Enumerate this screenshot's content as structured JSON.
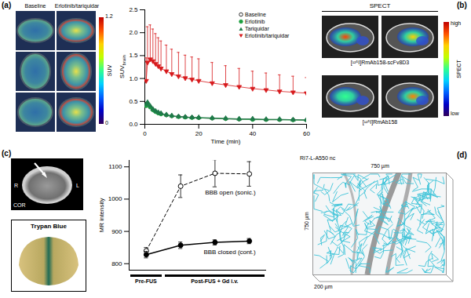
{
  "panels": {
    "a": {
      "label": "(a)",
      "columns": [
        "Baseline",
        "Erlotinib/tariquidar"
      ],
      "colorbar": {
        "label": "SUV",
        "range": [
          0,
          1.2
        ],
        "ticks": [
          0,
          1.2
        ]
      }
    },
    "b": {
      "label": "(b)",
      "title": "SPECT",
      "colorbar": {
        "label": "SPECT",
        "high": "high",
        "low": "low"
      },
      "rows": [
        "[¹²⁵I]RmAb158-scFv8D3",
        "[¹²⁵I]RmAb158"
      ]
    },
    "c": {
      "label": "(c)",
      "mri": {
        "view": "COR",
        "left": "R",
        "right": "L"
      },
      "stain": "Trypan Blue"
    },
    "d": {
      "label": "(d)",
      "title": "RI7-L-A550 nc",
      "width": "750 µm",
      "depth": "750 µm",
      "height": "200 µm"
    }
  },
  "chart_data": [
    {
      "type": "line",
      "xlabel": "Time (min)",
      "ylabel": {
        "text": "SUV",
        "subscript": "brain"
      },
      "x": [
        0.5,
        1,
        2,
        3,
        4,
        5,
        6,
        8,
        10,
        12.5,
        15,
        17.5,
        20,
        25,
        30,
        35,
        40,
        45,
        50,
        55,
        60
      ],
      "xlim": [
        0,
        60
      ],
      "xticks": [
        0,
        20,
        40,
        60
      ],
      "ylim": [
        0,
        2.5
      ],
      "yticks": [
        {
          "value": 0,
          "label": "0.0"
        },
        {
          "value": 0.5,
          "label": "0.5"
        },
        {
          "value": 1,
          "label": "1.0"
        },
        {
          "value": 1.5,
          "label": "1.5"
        },
        {
          "value": 2,
          "label": "2.0"
        },
        {
          "value": 2.5,
          "label": "2.5"
        }
      ],
      "legend": "top-right",
      "series": [
        {
          "name": "Baseline",
          "color": "#000000",
          "marker": "open-circle",
          "values": [
            0.42,
            0.46,
            0.38,
            0.32,
            0.28,
            0.25,
            0.23,
            0.2,
            0.18,
            0.17,
            0.16,
            0.15,
            0.14,
            0.13,
            0.12,
            0.11,
            0.11,
            0.1,
            0.1,
            0.1,
            0.09
          ]
        },
        {
          "name": "Erlotinib",
          "color": "#1b9e3e",
          "marker": "circle",
          "values": [
            0.4,
            0.44,
            0.37,
            0.31,
            0.27,
            0.24,
            0.22,
            0.2,
            0.18,
            0.16,
            0.15,
            0.14,
            0.14,
            0.13,
            0.12,
            0.11,
            0.1,
            0.1,
            0.1,
            0.09,
            0.09
          ]
        },
        {
          "name": "Tariquidar",
          "color": "#1f7a4a",
          "marker": "triangle",
          "values": [
            0.44,
            0.48,
            0.4,
            0.33,
            0.29,
            0.26,
            0.24,
            0.21,
            0.19,
            0.17,
            0.16,
            0.15,
            0.15,
            0.14,
            0.13,
            0.12,
            0.12,
            0.11,
            0.11,
            0.1,
            0.1
          ]
        },
        {
          "name": "Erlotinib/tariquidar",
          "color": "#d7191c",
          "marker": "triangle-down",
          "values": [
            0.95,
            1.35,
            1.42,
            1.38,
            1.32,
            1.27,
            1.22,
            1.16,
            1.1,
            1.05,
            1.01,
            0.98,
            0.95,
            0.9,
            0.86,
            0.82,
            0.78,
            0.75,
            0.72,
            0.7,
            0.68
          ],
          "error": [
            0.5,
            0.78,
            0.75,
            0.7,
            0.66,
            0.62,
            0.6,
            0.57,
            0.54,
            0.52,
            0.5,
            0.49,
            0.48,
            0.45,
            0.42,
            0.4,
            0.38,
            0.37,
            0.36,
            0.35,
            0.34
          ]
        }
      ]
    },
    {
      "type": "line",
      "ylabel": "MR intensity",
      "x": [
        1,
        2,
        3,
        4
      ],
      "xlim": [
        0.5,
        4.5
      ],
      "xticks": [],
      "ylim": [
        780,
        1120
      ],
      "yticks": [
        800,
        900,
        1000,
        1100
      ],
      "tick_labels": "y",
      "annotations": [
        {
          "text": "Pre-FUS",
          "x": [
            0.5,
            1.5
          ]
        },
        {
          "text": "Post-FUS + Gd i.v.",
          "x": [
            1.5,
            4.5
          ]
        }
      ],
      "series": [
        {
          "name": "BBB open (sonic.)",
          "color": "#000000",
          "marker": "open-circle",
          "line_style": "dashed",
          "values": [
            840,
            1040,
            1080,
            1078
          ],
          "error": [
            10,
            35,
            42,
            38
          ]
        },
        {
          "name": "BBB closed (cont.)",
          "color": "#000000",
          "marker": "circle",
          "line_style": "solid",
          "values": [
            828,
            857,
            866,
            870
          ],
          "error": [
            10,
            10,
            8,
            8
          ]
        }
      ]
    }
  ]
}
